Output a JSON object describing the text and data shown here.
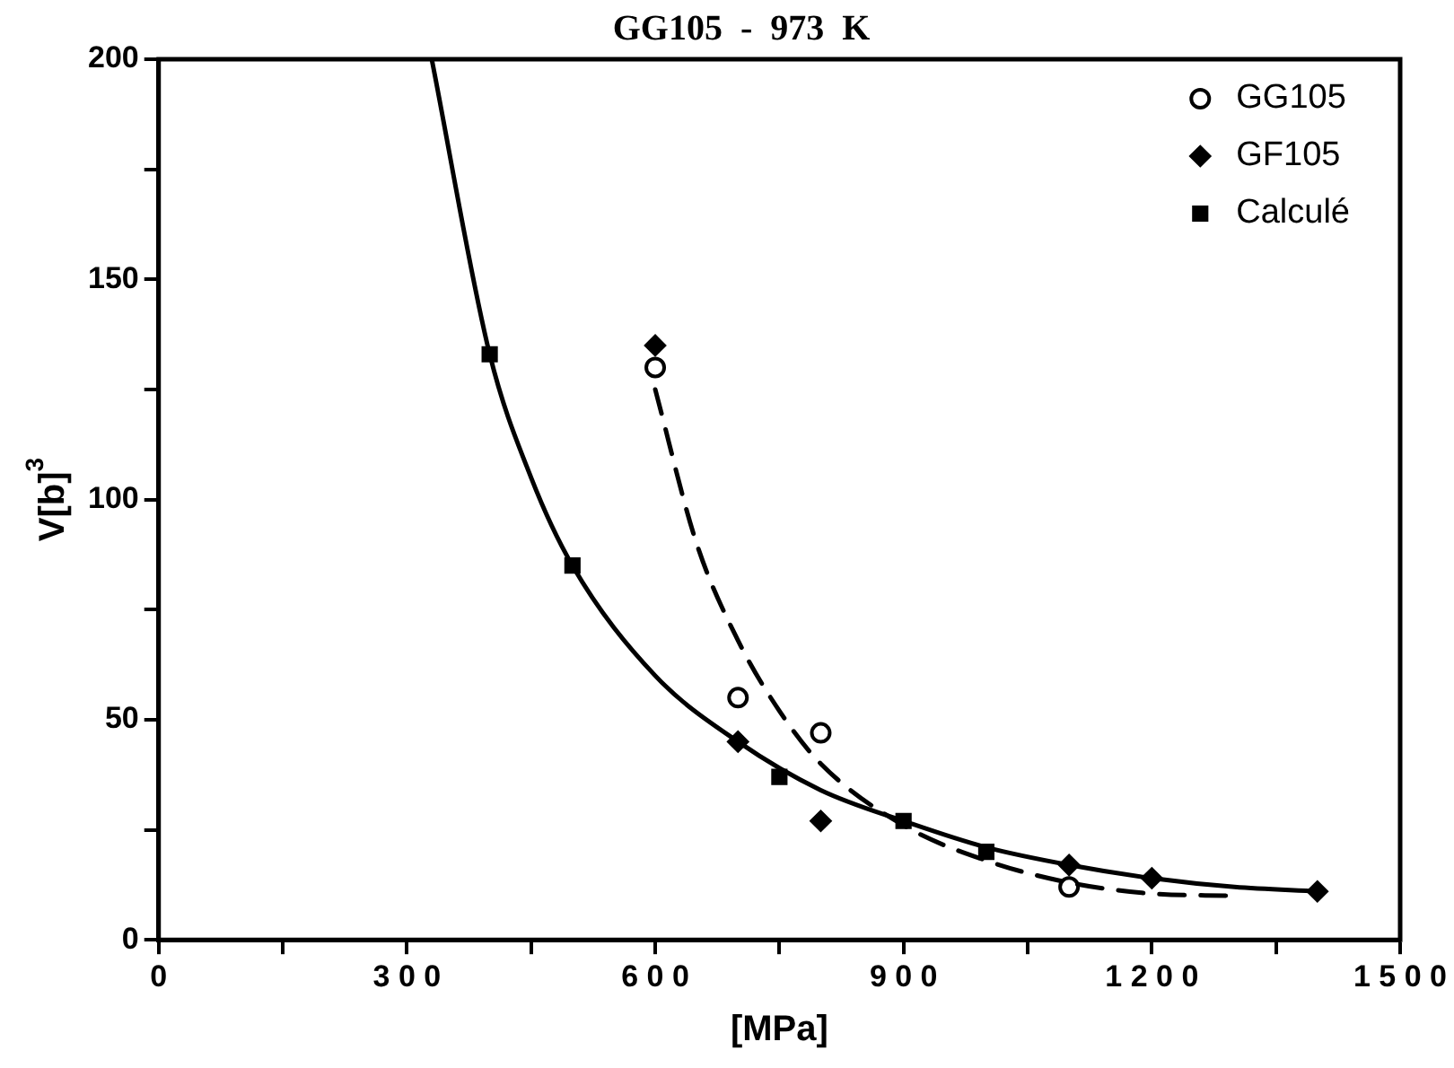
{
  "chart_data": {
    "type": "scatter",
    "title": "GG105  -  973  K",
    "xlabel": "[MPa]",
    "ylabel": "V[b]$^{3}$",
    "xlim": [
      0,
      1500
    ],
    "xticks": [
      0,
      {
        "value": 150,
        "label": null
      },
      300,
      {
        "value": 450,
        "label": null
      },
      600,
      {
        "value": 750,
        "label": null
      },
      900,
      {
        "value": 1050,
        "label": null
      },
      1200,
      {
        "value": 1350,
        "label": null
      },
      1500
    ],
    "ylim": [
      0,
      200
    ],
    "yticks": [
      0,
      {
        "value": 25,
        "label": null
      },
      50,
      {
        "value": 75,
        "label": null
      },
      100,
      {
        "value": 125,
        "label": null
      },
      150,
      {
        "value": 175,
        "label": null
      },
      200
    ],
    "grid": false,
    "legend": "top right",
    "series": [
      {
        "name": "GG105",
        "color": "#000000",
        "marker": "circle",
        "x": [
          600,
          700,
          800,
          900,
          1000,
          1100
        ],
        "values": [
          130,
          55,
          47,
          null,
          null,
          12
        ]
      },
      {
        "name": "GF105",
        "color": "#000000",
        "marker": "diamond",
        "x": [
          600,
          700,
          800,
          1000,
          1100,
          1200,
          1400
        ],
        "values": [
          135,
          45,
          27,
          null,
          17,
          14,
          11
        ]
      },
      {
        "name": "Calculé",
        "color": "#000000",
        "marker": "square",
        "x": [
          400,
          500,
          750,
          900,
          1000
        ],
        "values": [
          133,
          85,
          37,
          27,
          20
        ]
      },
      {
        "type": "line",
        "color": "#000000",
        "line_style": "solid",
        "marker": "none",
        "x": [
          330,
          400,
          450,
          500,
          600,
          700,
          800,
          900,
          1000,
          1100,
          1200,
          1300,
          1400
        ],
        "values": [
          200,
          133,
          105,
          85,
          60,
          45,
          34,
          27,
          21,
          17,
          14,
          12,
          11
        ]
      },
      {
        "type": "line",
        "color": "#000000",
        "line_style": "dashed",
        "marker": "none",
        "x": [
          600,
          650,
          700,
          750,
          800,
          900,
          1000,
          1100,
          1200,
          1300
        ],
        "values": [
          125,
          90,
          68,
          52,
          40,
          26,
          18,
          13,
          10.5,
          10
        ]
      }
    ]
  }
}
